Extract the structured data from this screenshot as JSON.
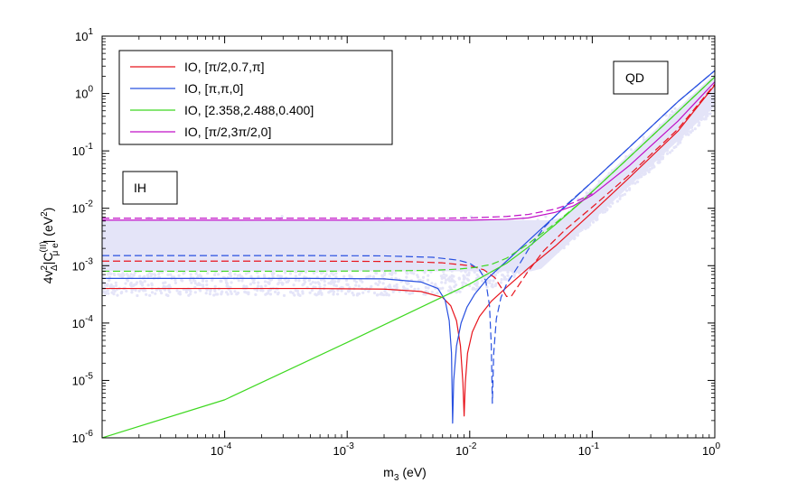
{
  "chart_data": {
    "type": "line",
    "xscale": "log",
    "yscale": "log",
    "xlim": [
      1e-05,
      1
    ],
    "ylim": [
      1e-06,
      10
    ],
    "xlabel": "m",
    "xlabel_sub": "3",
    "xlabel_unit": "(eV)",
    "ylabel_parts": {
      "prefix": "4v",
      "sup1": "2",
      "sub1": "Δ",
      "mid": "|C",
      "sup2": "(II)",
      "sub2": "μ e",
      "suffix": "| (eV",
      "sup3": "2",
      "end": ")"
    },
    "x_ticks": [
      {
        "value": 0.0001,
        "base": "10",
        "exp": "-4"
      },
      {
        "value": 0.001,
        "base": "10",
        "exp": "-3"
      },
      {
        "value": 0.01,
        "base": "10",
        "exp": "-2"
      },
      {
        "value": 0.1,
        "base": "10",
        "exp": "-1"
      },
      {
        "value": 1,
        "base": "10",
        "exp": "0"
      }
    ],
    "y_ticks": [
      {
        "value": 1e-06,
        "base": "10",
        "exp": "-6"
      },
      {
        "value": 1e-05,
        "base": "10",
        "exp": "-5"
      },
      {
        "value": 0.0001,
        "base": "10",
        "exp": "-4"
      },
      {
        "value": 0.001,
        "base": "10",
        "exp": "-3"
      },
      {
        "value": 0.01,
        "base": "10",
        "exp": "-2"
      },
      {
        "value": 0.1,
        "base": "10",
        "exp": "-1"
      },
      {
        "value": 1,
        "base": "10",
        "exp": "0"
      },
      {
        "value": 10,
        "base": "10",
        "exp": "1"
      }
    ],
    "legend": {
      "placement": "top-left",
      "entries": [
        {
          "label": "IO, [π/2,0.7,π]",
          "color": "#e8141c"
        },
        {
          "label": "IO, [π,π,0]",
          "color": "#2850e0"
        },
        {
          "label": "IO, [2.358,2.488,0.400]",
          "color": "#3ed820"
        },
        {
          "label": "IO, [π/2,3π/2,0]",
          "color": "#c010c8"
        }
      ]
    },
    "annotations": [
      {
        "text": "IH",
        "position": "left"
      },
      {
        "text": "QD",
        "position": "top-right"
      }
    ],
    "scatter_color": "#e4e4f8",
    "series": [
      {
        "name": "IO, [π/2,0.7,π] solid",
        "color": "#e8141c",
        "style": "solid",
        "x": [
          1e-05,
          0.0005,
          0.002,
          0.004,
          0.006,
          0.007,
          0.0078,
          0.0084,
          0.0088,
          0.009,
          0.0092,
          0.0096,
          0.0105,
          0.012,
          0.015,
          0.02,
          0.03,
          0.05,
          0.1,
          0.2,
          0.5,
          1
        ],
        "y": [
          0.0004,
          0.0004,
          0.00039,
          0.000355,
          0.00028,
          0.0002,
          0.00011,
          4e-05,
          9e-06,
          2.4e-06,
          9e-06,
          3e-05,
          7e-05,
          0.00013,
          0.00024,
          0.00042,
          0.0009,
          0.0022,
          0.0085,
          0.034,
          0.22,
          1.4
        ]
      },
      {
        "name": "IO, [π/2,0.7,π] dashed",
        "color": "#e8141c",
        "style": "dashed",
        "x": [
          1e-05,
          0.0005,
          0.003,
          0.006,
          0.01,
          0.013,
          0.016,
          0.018,
          0.02,
          0.022,
          0.025,
          0.03,
          0.04,
          0.06,
          0.1,
          0.2,
          0.5,
          1
        ],
        "y": [
          0.0012,
          0.0012,
          0.00118,
          0.00112,
          0.001,
          0.00085,
          0.00062,
          0.00042,
          0.00029,
          0.0003,
          0.00045,
          0.0008,
          0.0018,
          0.0042,
          0.0105,
          0.038,
          0.24,
          1.45
        ]
      },
      {
        "name": "IO, [π,π,0] solid",
        "color": "#2850e0",
        "style": "solid",
        "x": [
          1e-05,
          0.0005,
          0.002,
          0.004,
          0.0055,
          0.0063,
          0.0068,
          0.0071,
          0.00725,
          0.0074,
          0.0078,
          0.0085,
          0.0095,
          0.011,
          0.014,
          0.02,
          0.03,
          0.05,
          0.1,
          0.2,
          0.5,
          1
        ],
        "y": [
          0.0006,
          0.0006,
          0.00059,
          0.00052,
          0.0004,
          0.00025,
          0.00011,
          3e-05,
          1.8e-06,
          1e-05,
          4e-05,
          0.0001,
          0.00019,
          0.00032,
          0.0006,
          0.0012,
          0.0027,
          0.0074,
          0.029,
          0.115,
          0.72,
          2.5
        ]
      },
      {
        "name": "IO, [π,π,0] dashed",
        "color": "#2850e0",
        "style": "dashed",
        "x": [
          1e-05,
          0.0005,
          0.002,
          0.005,
          0.008,
          0.01,
          0.012,
          0.0135,
          0.0145,
          0.015,
          0.0153,
          0.0157,
          0.0165,
          0.018,
          0.02,
          0.025,
          0.03,
          0.04,
          0.06,
          0.1,
          0.2,
          0.5,
          1
        ],
        "y": [
          0.0015,
          0.0015,
          0.00148,
          0.0014,
          0.00125,
          0.0011,
          0.00085,
          0.00055,
          0.0002,
          4e-05,
          4e-06,
          3e-05,
          0.00012,
          0.00028,
          0.00048,
          0.001,
          0.0019,
          0.0045,
          0.011,
          0.029,
          0.115,
          0.72,
          2.5
        ]
      },
      {
        "name": "IO, [2.358,2.488,0.400] solid",
        "color": "#3ed820",
        "style": "solid",
        "x": [
          1e-05,
          0.0001,
          0.001,
          0.01,
          0.02,
          0.03,
          0.05,
          0.08,
          0.1,
          0.2,
          0.5,
          1
        ],
        "y": [
          1e-06,
          4.6e-06,
          4.6e-05,
          0.00048,
          0.0011,
          0.0021,
          0.0052,
          0.0125,
          0.0195,
          0.077,
          0.48,
          1.95
        ]
      },
      {
        "name": "IO, [2.358,2.488,0.400] dashed",
        "color": "#3ed820",
        "style": "dashed",
        "x": [
          1e-05,
          0.0005,
          0.002,
          0.005,
          0.008,
          0.011,
          0.015,
          0.02,
          0.03,
          0.05,
          0.08,
          0.1,
          0.2,
          0.5,
          1
        ],
        "y": [
          0.0008,
          0.0008,
          0.00081,
          0.00083,
          0.00087,
          0.00093,
          0.00105,
          0.00135,
          0.0024,
          0.0055,
          0.0125,
          0.0195,
          0.077,
          0.48,
          1.95
        ]
      },
      {
        "name": "IO, [π/2,3π/2,0] solid",
        "color": "#c010c8",
        "style": "solid",
        "x": [
          1e-05,
          0.001,
          0.005,
          0.01,
          0.02,
          0.03,
          0.05,
          0.07,
          0.1,
          0.2,
          0.5,
          1
        ],
        "y": [
          0.0062,
          0.0062,
          0.0062,
          0.0062,
          0.0064,
          0.0068,
          0.0085,
          0.011,
          0.017,
          0.055,
          0.33,
          1.6
        ]
      },
      {
        "name": "IO, [π/2,3π/2,0] dashed",
        "color": "#c010c8",
        "style": "dashed",
        "x": [
          1e-05,
          0.001,
          0.005,
          0.01,
          0.02,
          0.03,
          0.05,
          0.07,
          0.1
        ],
        "y": [
          0.0067,
          0.0067,
          0.0067,
          0.0068,
          0.0072,
          0.0078,
          0.0097,
          0.0125,
          0.018
        ]
      }
    ]
  }
}
